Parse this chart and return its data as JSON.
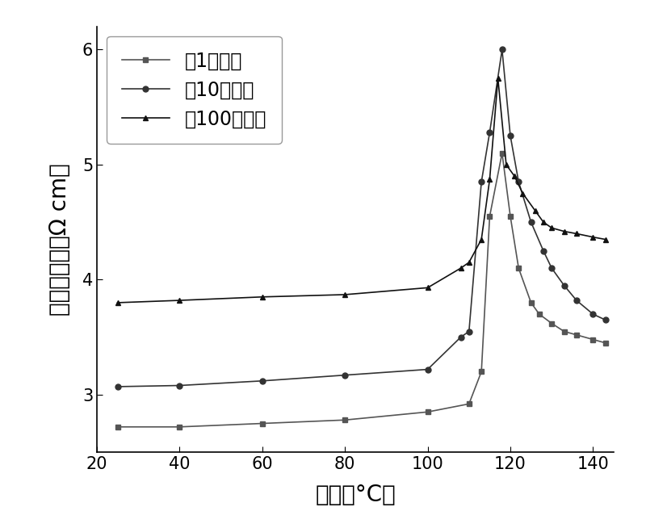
{
  "title": "",
  "xlabel": "温度（°C）",
  "ylabel": "电阻率对数（Ω cm）",
  "xlim": [
    20,
    145
  ],
  "ylim": [
    2.5,
    6.2
  ],
  "xticks": [
    20,
    40,
    60,
    80,
    100,
    120,
    140
  ],
  "yticks": [
    3,
    4,
    5,
    6
  ],
  "background_color": "#ffffff",
  "series": [
    {
      "label": "第1次加热",
      "marker": "s",
      "color": "#555555",
      "x": [
        25,
        40,
        60,
        80,
        100,
        110,
        113,
        115,
        118,
        120,
        122,
        125,
        127,
        130,
        133,
        136,
        140,
        143
      ],
      "y": [
        2.72,
        2.72,
        2.75,
        2.78,
        2.85,
        2.92,
        3.2,
        4.55,
        5.1,
        4.55,
        4.1,
        3.8,
        3.7,
        3.62,
        3.55,
        3.52,
        3.48,
        3.45
      ]
    },
    {
      "label": "第10次加热",
      "marker": "o",
      "color": "#333333",
      "x": [
        25,
        40,
        60,
        80,
        100,
        108,
        110,
        113,
        115,
        118,
        120,
        122,
        125,
        128,
        130,
        133,
        136,
        140,
        143
      ],
      "y": [
        3.07,
        3.08,
        3.12,
        3.17,
        3.22,
        3.5,
        3.55,
        4.85,
        5.28,
        6.0,
        5.25,
        4.85,
        4.5,
        4.25,
        4.1,
        3.95,
        3.82,
        3.7,
        3.65
      ]
    },
    {
      "label": "第100次加热",
      "marker": "^",
      "color": "#111111",
      "x": [
        25,
        40,
        60,
        80,
        100,
        108,
        110,
        113,
        115,
        117,
        119,
        121,
        123,
        126,
        128,
        130,
        133,
        136,
        140,
        143
      ],
      "y": [
        3.8,
        3.82,
        3.85,
        3.87,
        3.93,
        4.1,
        4.15,
        4.35,
        4.87,
        5.75,
        5.0,
        4.9,
        4.75,
        4.6,
        4.5,
        4.45,
        4.42,
        4.4,
        4.37,
        4.35
      ]
    }
  ],
  "legend_loc": "upper left",
  "fontsize_label": 20,
  "fontsize_tick": 15,
  "fontsize_legend": 17
}
